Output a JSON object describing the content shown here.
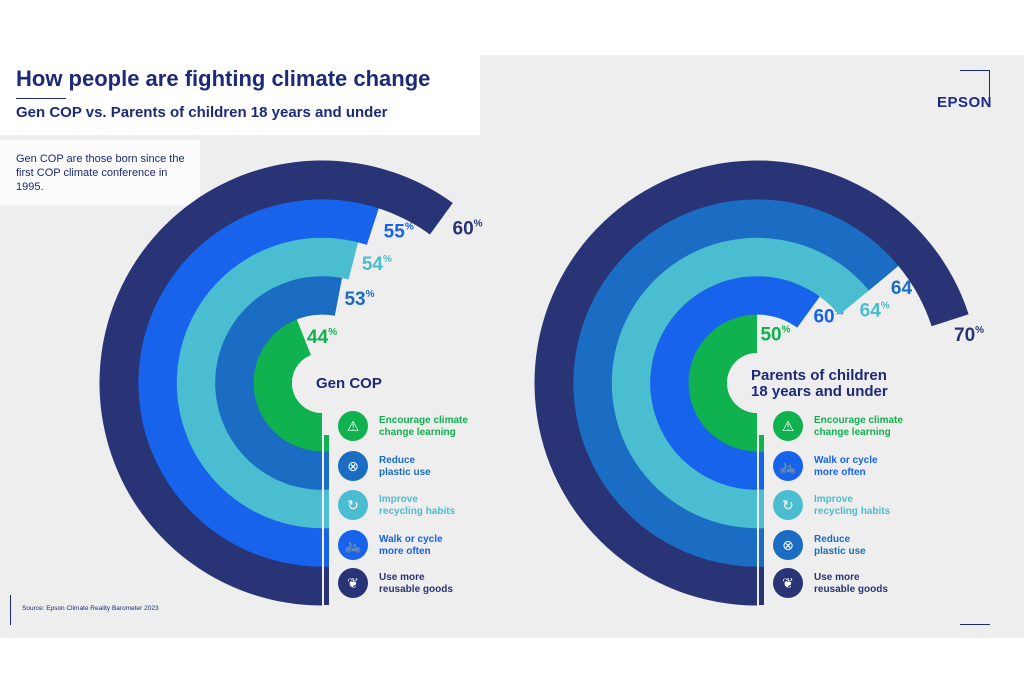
{
  "header": {
    "title": "How people are fighting climate change",
    "subtitle": "Gen COP vs. Parents of children 18 years and under",
    "logo": "EPSON"
  },
  "note": "Gen COP are those born since the first COP climate conference in 1995.",
  "source": "Source: Epson Climate Reality Barometer 2023",
  "colors": {
    "Encourage": "#10b14f",
    "Plastic": "#1a6dc2",
    "Recycling": "#4abdd1",
    "Walk": "#1763ec",
    "Reusable": "#283476",
    "title": "#1c2a78"
  },
  "chart_data": [
    {
      "type": "radial-bar",
      "title": "Gen COP",
      "full_scale_percent": 100,
      "series": [
        {
          "category": "Encourage climate change learning",
          "value": 44,
          "color": "#10b14f",
          "icon": "globe-warning-icon"
        },
        {
          "category": "Reduce plastic use",
          "value": 53,
          "color": "#1a6dc2",
          "icon": "no-plastic-bottle-icon"
        },
        {
          "category": "Improve recycling habits",
          "value": 54,
          "color": "#4abdd1",
          "icon": "recycle-arrow-icon"
        },
        {
          "category": "Walk or cycle more often",
          "value": 55,
          "color": "#1763ec",
          "icon": "bicycle-icon"
        },
        {
          "category": "Use more reusable goods",
          "value": 60,
          "color": "#283476",
          "icon": "plant-sprout-icon"
        }
      ],
      "legend": [
        {
          "line1": "Encourage climate",
          "line2": "change learning"
        },
        {
          "line1": "Reduce",
          "line2": "plastic use"
        },
        {
          "line1": "Improve",
          "line2": "recycling habits"
        },
        {
          "line1": "Walk or cycle",
          "line2": "more often"
        },
        {
          "line1": "Use more",
          "line2": "reusable goods"
        }
      ]
    },
    {
      "type": "radial-bar",
      "title_line1": "Parents of children",
      "title_line2": "18 years and under",
      "full_scale_percent": 100,
      "series": [
        {
          "category": "Encourage climate change learning",
          "value": 50,
          "color": "#10b14f",
          "icon": "globe-warning-icon"
        },
        {
          "category": "Walk or cycle more often",
          "value": 60,
          "color": "#1763ec",
          "icon": "bicycle-icon"
        },
        {
          "category": "Improve recycling habits",
          "value": 64,
          "color": "#4abdd1",
          "icon": "recycle-arrow-icon"
        },
        {
          "category": "Reduce plastic use",
          "value": 64,
          "color": "#1a6dc2",
          "icon": "no-plastic-bottle-icon"
        },
        {
          "category": "Use more reusable goods",
          "value": 70,
          "color": "#283476",
          "icon": "plant-sprout-icon"
        }
      ],
      "legend": [
        {
          "line1": "Encourage climate",
          "line2": "change learning"
        },
        {
          "line1": "Walk or cycle",
          "line2": "more often"
        },
        {
          "line1": "Improve",
          "line2": "recycling habits"
        },
        {
          "line1": "Reduce",
          "line2": "plastic use"
        },
        {
          "line1": "Use more",
          "line2": "reusable goods"
        }
      ]
    }
  ]
}
